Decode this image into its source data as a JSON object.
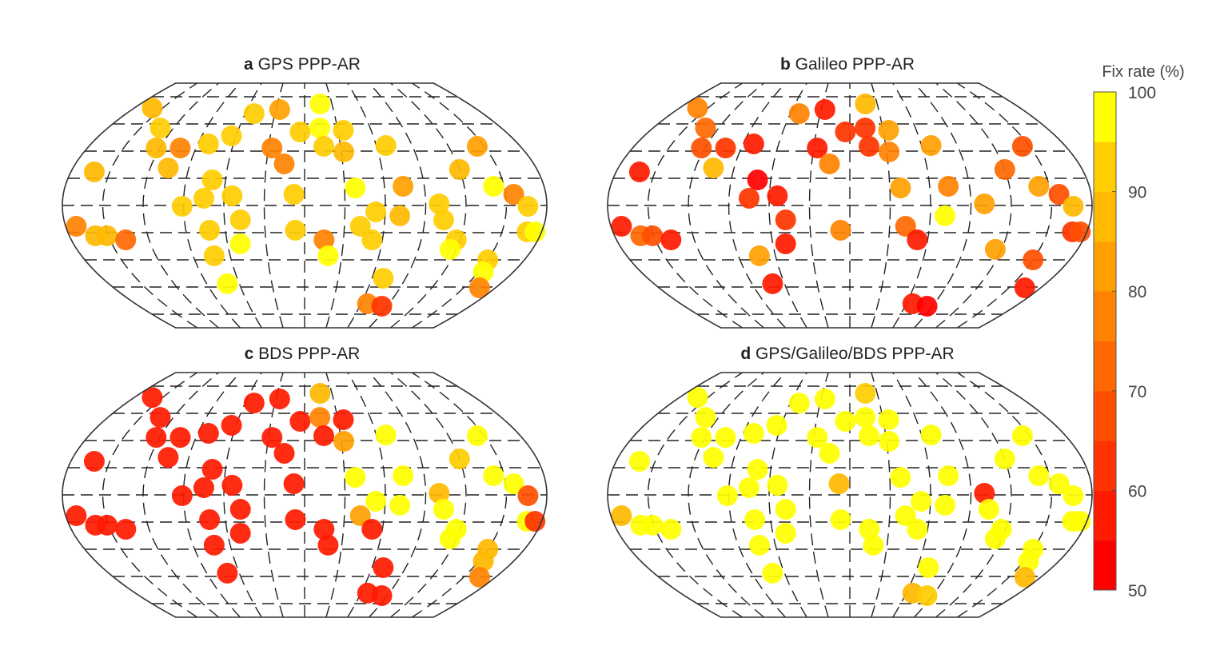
{
  "chart_data": {
    "type": "scatter",
    "map_projection": "Robinson-like world map",
    "graticule": {
      "parallel_step_deg": 20,
      "meridian_step_deg": 30,
      "style": "dashed"
    },
    "colorbar": {
      "title": "Fix rate (%)",
      "range": [
        50,
        100
      ],
      "ticks": [
        50,
        60,
        70,
        80,
        90,
        100
      ],
      "tick_labels": [
        "50",
        "60",
        "70",
        "80",
        "90",
        "100"
      ],
      "bins": 10,
      "colormap": "red-to-yellow (autumn)"
    },
    "stations": [
      [
        -161,
        71.7
      ],
      [
        -132,
        57
      ],
      [
        -123,
        42.3
      ],
      [
        -103,
        42.3
      ],
      [
        -106,
        27.6
      ],
      [
        -162,
        24.7
      ],
      [
        -81,
        45.3
      ],
      [
        -64,
        51.2
      ],
      [
        -51,
        67.6
      ],
      [
        -26,
        70.6
      ],
      [
        17,
        74.7
      ],
      [
        -4,
        54.1
      ],
      [
        14,
        57
      ],
      [
        35,
        55.3
      ],
      [
        -27,
        42.3
      ],
      [
        -16,
        30.6
      ],
      [
        16,
        43.5
      ],
      [
        32,
        39.4
      ],
      [
        68,
        44.1
      ],
      [
        144,
        43.5
      ],
      [
        120,
        26.5
      ],
      [
        -70,
        18.8
      ],
      [
        -54,
        7.1
      ],
      [
        -75,
        5.3
      ],
      [
        -91,
        -0.6
      ],
      [
        -8,
        8.2
      ],
      [
        38,
        12.9
      ],
      [
        74,
        14.1
      ],
      [
        142,
        14.1
      ],
      [
        156,
        8.2
      ],
      [
        166,
        -0.6
      ],
      [
        100,
        1.2
      ],
      [
        53,
        -4.7
      ],
      [
        71,
        -7.6
      ],
      [
        104,
        -10.6
      ],
      [
        -172,
        -15.3
      ],
      [
        -160,
        -22.3
      ],
      [
        -151,
        -22.3
      ],
      [
        -138,
        -25.3
      ],
      [
        -72,
        -18.2
      ],
      [
        -48,
        -10.6
      ],
      [
        -50,
        -28.2
      ],
      [
        -7,
        -18.2
      ],
      [
        15,
        -25.3
      ],
      [
        19,
        -37
      ],
      [
        42,
        -15.3
      ],
      [
        52,
        -25.3
      ],
      [
        117,
        -25.3
      ],
      [
        115,
        -32.3
      ],
      [
        169,
        -19.4
      ],
      [
        175,
        -19.4
      ],
      [
        -73,
        -37
      ],
      [
        150,
        -40
      ],
      [
        154,
        -48.8
      ],
      [
        -71,
        -57.6
      ],
      [
        70,
        -53.5
      ],
      [
        165,
        -60.6
      ],
      [
        67,
        -72.3
      ],
      [
        84,
        -74.1
      ]
    ],
    "panels": [
      {
        "letter": "a",
        "title": "GPS PPP-AR",
        "values": [
          88,
          90,
          89,
          78,
          86,
          88,
          92,
          92,
          93,
          80,
          98,
          91,
          95,
          92,
          78,
          79,
          93,
          88,
          90,
          82,
          85,
          93,
          90,
          91,
          94,
          92,
          98,
          80,
          97,
          76,
          90,
          90,
          93,
          88,
          92,
          76,
          86,
          88,
          70,
          92,
          91,
          97,
          94,
          79,
          97,
          93,
          94,
          93,
          97,
          93,
          95,
          93,
          90,
          96,
          96,
          90,
          78,
          75,
          62
        ]
      },
      {
        "letter": "b",
        "title": "Galileo PPP-AR",
        "values": [
          75,
          72,
          65,
          62,
          88,
          55,
          55,
          null,
          75,
          55,
          88,
          62,
          62,
          80,
          58,
          75,
          60,
          75,
          80,
          65,
          72,
          52,
          55,
          62,
          null,
          null,
          82,
          75,
          80,
          65,
          85,
          80,
          null,
          97,
          null,
          55,
          72,
          68,
          55,
          null,
          62,
          55,
          75,
          null,
          null,
          72,
          55,
          null,
          80,
          60,
          68,
          80,
          68,
          null,
          55,
          null,
          55,
          55,
          52
        ]
      },
      {
        "letter": "c",
        "title": "BDS PPP-AR",
        "values": [
          55,
          55,
          55,
          55,
          55,
          55,
          55,
          55,
          55,
          55,
          85,
          55,
          75,
          55,
          55,
          55,
          55,
          80,
          95,
          95,
          93,
          55,
          55,
          55,
          55,
          55,
          97,
          95,
          96,
          95,
          65,
          85,
          97,
          96,
          95,
          55,
          55,
          55,
          55,
          55,
          55,
          55,
          55,
          55,
          55,
          80,
          55,
          96,
          95,
          95,
          62,
          55,
          85,
          85,
          55,
          55,
          75,
          55,
          55
        ]
      },
      {
        "letter": "d",
        "title": "GPS/Galileo/BDS PPP-AR",
        "values": [
          97,
          97,
          96,
          97,
          97,
          98,
          97,
          98,
          97,
          96,
          90,
          98,
          98,
          97,
          97,
          97,
          98,
          97,
          97,
          98,
          98,
          98,
          98,
          98,
          98,
          88,
          98,
          97,
          98,
          97,
          95,
          58,
          97,
          98,
          96,
          85,
          97,
          97,
          96,
          98,
          98,
          97,
          97,
          97,
          98,
          96,
          98,
          97,
          97,
          98,
          97,
          98,
          97,
          97,
          98,
          98,
          88,
          88,
          92
        ]
      }
    ]
  }
}
